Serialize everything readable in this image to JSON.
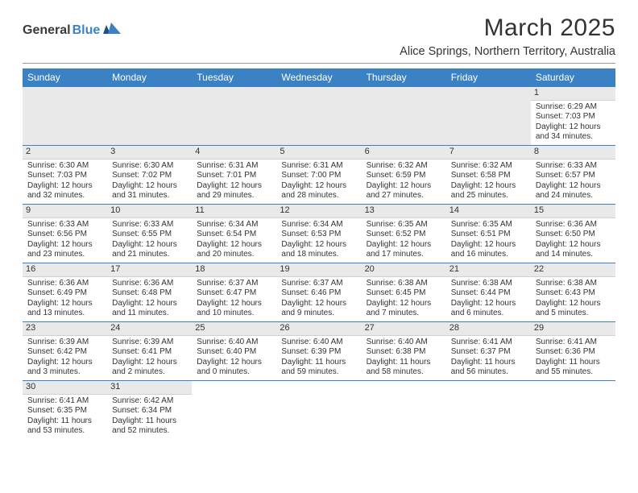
{
  "logo": {
    "text_dark": "General",
    "text_blue": "Blue"
  },
  "title": "March 2025",
  "location": "Alice Springs, Northern Territory, Australia",
  "colors": {
    "header_bg": "#3b82c4",
    "header_text": "#ffffff",
    "rule": "#999999",
    "week_divider": "#3b82c4",
    "daynum_bg": "#e9e9e9",
    "text": "#333333"
  },
  "day_labels": [
    "Sunday",
    "Monday",
    "Tuesday",
    "Wednesday",
    "Thursday",
    "Friday",
    "Saturday"
  ],
  "weeks": [
    [
      {
        "blank": true
      },
      {
        "blank": true
      },
      {
        "blank": true
      },
      {
        "blank": true
      },
      {
        "blank": true
      },
      {
        "blank": true
      },
      {
        "n": "1",
        "sunrise": "Sunrise: 6:29 AM",
        "sunset": "Sunset: 7:03 PM",
        "day1": "Daylight: 12 hours",
        "day2": "and 34 minutes."
      }
    ],
    [
      {
        "n": "2",
        "sunrise": "Sunrise: 6:30 AM",
        "sunset": "Sunset: 7:03 PM",
        "day1": "Daylight: 12 hours",
        "day2": "and 32 minutes."
      },
      {
        "n": "3",
        "sunrise": "Sunrise: 6:30 AM",
        "sunset": "Sunset: 7:02 PM",
        "day1": "Daylight: 12 hours",
        "day2": "and 31 minutes."
      },
      {
        "n": "4",
        "sunrise": "Sunrise: 6:31 AM",
        "sunset": "Sunset: 7:01 PM",
        "day1": "Daylight: 12 hours",
        "day2": "and 29 minutes."
      },
      {
        "n": "5",
        "sunrise": "Sunrise: 6:31 AM",
        "sunset": "Sunset: 7:00 PM",
        "day1": "Daylight: 12 hours",
        "day2": "and 28 minutes."
      },
      {
        "n": "6",
        "sunrise": "Sunrise: 6:32 AM",
        "sunset": "Sunset: 6:59 PM",
        "day1": "Daylight: 12 hours",
        "day2": "and 27 minutes."
      },
      {
        "n": "7",
        "sunrise": "Sunrise: 6:32 AM",
        "sunset": "Sunset: 6:58 PM",
        "day1": "Daylight: 12 hours",
        "day2": "and 25 minutes."
      },
      {
        "n": "8",
        "sunrise": "Sunrise: 6:33 AM",
        "sunset": "Sunset: 6:57 PM",
        "day1": "Daylight: 12 hours",
        "day2": "and 24 minutes."
      }
    ],
    [
      {
        "n": "9",
        "sunrise": "Sunrise: 6:33 AM",
        "sunset": "Sunset: 6:56 PM",
        "day1": "Daylight: 12 hours",
        "day2": "and 23 minutes."
      },
      {
        "n": "10",
        "sunrise": "Sunrise: 6:33 AM",
        "sunset": "Sunset: 6:55 PM",
        "day1": "Daylight: 12 hours",
        "day2": "and 21 minutes."
      },
      {
        "n": "11",
        "sunrise": "Sunrise: 6:34 AM",
        "sunset": "Sunset: 6:54 PM",
        "day1": "Daylight: 12 hours",
        "day2": "and 20 minutes."
      },
      {
        "n": "12",
        "sunrise": "Sunrise: 6:34 AM",
        "sunset": "Sunset: 6:53 PM",
        "day1": "Daylight: 12 hours",
        "day2": "and 18 minutes."
      },
      {
        "n": "13",
        "sunrise": "Sunrise: 6:35 AM",
        "sunset": "Sunset: 6:52 PM",
        "day1": "Daylight: 12 hours",
        "day2": "and 17 minutes."
      },
      {
        "n": "14",
        "sunrise": "Sunrise: 6:35 AM",
        "sunset": "Sunset: 6:51 PM",
        "day1": "Daylight: 12 hours",
        "day2": "and 16 minutes."
      },
      {
        "n": "15",
        "sunrise": "Sunrise: 6:36 AM",
        "sunset": "Sunset: 6:50 PM",
        "day1": "Daylight: 12 hours",
        "day2": "and 14 minutes."
      }
    ],
    [
      {
        "n": "16",
        "sunrise": "Sunrise: 6:36 AM",
        "sunset": "Sunset: 6:49 PM",
        "day1": "Daylight: 12 hours",
        "day2": "and 13 minutes."
      },
      {
        "n": "17",
        "sunrise": "Sunrise: 6:36 AM",
        "sunset": "Sunset: 6:48 PM",
        "day1": "Daylight: 12 hours",
        "day2": "and 11 minutes."
      },
      {
        "n": "18",
        "sunrise": "Sunrise: 6:37 AM",
        "sunset": "Sunset: 6:47 PM",
        "day1": "Daylight: 12 hours",
        "day2": "and 10 minutes."
      },
      {
        "n": "19",
        "sunrise": "Sunrise: 6:37 AM",
        "sunset": "Sunset: 6:46 PM",
        "day1": "Daylight: 12 hours",
        "day2": "and 9 minutes."
      },
      {
        "n": "20",
        "sunrise": "Sunrise: 6:38 AM",
        "sunset": "Sunset: 6:45 PM",
        "day1": "Daylight: 12 hours",
        "day2": "and 7 minutes."
      },
      {
        "n": "21",
        "sunrise": "Sunrise: 6:38 AM",
        "sunset": "Sunset: 6:44 PM",
        "day1": "Daylight: 12 hours",
        "day2": "and 6 minutes."
      },
      {
        "n": "22",
        "sunrise": "Sunrise: 6:38 AM",
        "sunset": "Sunset: 6:43 PM",
        "day1": "Daylight: 12 hours",
        "day2": "and 5 minutes."
      }
    ],
    [
      {
        "n": "23",
        "sunrise": "Sunrise: 6:39 AM",
        "sunset": "Sunset: 6:42 PM",
        "day1": "Daylight: 12 hours",
        "day2": "and 3 minutes."
      },
      {
        "n": "24",
        "sunrise": "Sunrise: 6:39 AM",
        "sunset": "Sunset: 6:41 PM",
        "day1": "Daylight: 12 hours",
        "day2": "and 2 minutes."
      },
      {
        "n": "25",
        "sunrise": "Sunrise: 6:40 AM",
        "sunset": "Sunset: 6:40 PM",
        "day1": "Daylight: 12 hours",
        "day2": "and 0 minutes."
      },
      {
        "n": "26",
        "sunrise": "Sunrise: 6:40 AM",
        "sunset": "Sunset: 6:39 PM",
        "day1": "Daylight: 11 hours",
        "day2": "and 59 minutes."
      },
      {
        "n": "27",
        "sunrise": "Sunrise: 6:40 AM",
        "sunset": "Sunset: 6:38 PM",
        "day1": "Daylight: 11 hours",
        "day2": "and 58 minutes."
      },
      {
        "n": "28",
        "sunrise": "Sunrise: 6:41 AM",
        "sunset": "Sunset: 6:37 PM",
        "day1": "Daylight: 11 hours",
        "day2": "and 56 minutes."
      },
      {
        "n": "29",
        "sunrise": "Sunrise: 6:41 AM",
        "sunset": "Sunset: 6:36 PM",
        "day1": "Daylight: 11 hours",
        "day2": "and 55 minutes."
      }
    ],
    [
      {
        "n": "30",
        "sunrise": "Sunrise: 6:41 AM",
        "sunset": "Sunset: 6:35 PM",
        "day1": "Daylight: 11 hours",
        "day2": "and 53 minutes."
      },
      {
        "n": "31",
        "sunrise": "Sunrise: 6:42 AM",
        "sunset": "Sunset: 6:34 PM",
        "day1": "Daylight: 11 hours",
        "day2": "and 52 minutes."
      },
      {
        "blank": true
      },
      {
        "blank": true
      },
      {
        "blank": true
      },
      {
        "blank": true
      },
      {
        "blank": true
      }
    ]
  ]
}
